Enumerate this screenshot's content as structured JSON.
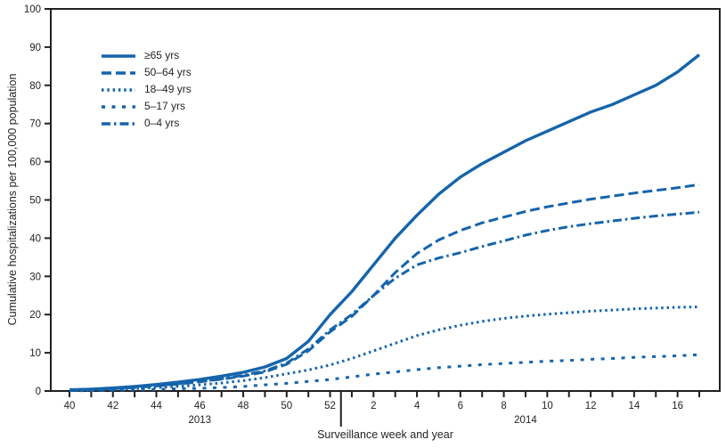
{
  "chart_data": {
    "type": "line",
    "title": "",
    "xlabel": "Surveillance week and year",
    "ylabel": "Cumulative hospitalizations per 100,000 population",
    "ylim": [
      0,
      100
    ],
    "y_ticks": [
      0,
      10,
      20,
      30,
      40,
      50,
      60,
      70,
      80,
      90,
      100
    ],
    "grid": "off",
    "legend_position": "upper-left-inside",
    "line_color": "#1564ab",
    "axis_color": "#231f20",
    "weeks": [
      40,
      41,
      42,
      43,
      44,
      45,
      46,
      47,
      48,
      49,
      50,
      51,
      52,
      1,
      2,
      3,
      4,
      5,
      6,
      7,
      8,
      9,
      10,
      11,
      12,
      13,
      14,
      15,
      16,
      17
    ],
    "x_tick_labels": [
      "40",
      "",
      "42",
      "",
      "44",
      "",
      "46",
      "",
      "48",
      "",
      "50",
      "",
      "52",
      "",
      "2",
      "",
      "4",
      "",
      "6",
      "",
      "8",
      "",
      "10",
      "",
      "12",
      "",
      "14",
      "",
      "16",
      ""
    ],
    "year_separator_after_index": 12,
    "year_labels": [
      {
        "text": "2013",
        "at_index": 6
      },
      {
        "text": "2014",
        "at_index": 21
      }
    ],
    "series": [
      {
        "name": "≥65 yrs",
        "style": "solid",
        "values": [
          0.3,
          0.5,
          0.8,
          1.2,
          1.7,
          2.3,
          3.0,
          3.9,
          4.9,
          6.3,
          8.5,
          13.0,
          20.0,
          26.0,
          33.0,
          40.0,
          46.0,
          51.5,
          56.0,
          59.5,
          62.5,
          65.5,
          68.0,
          70.5,
          73.0,
          75.0,
          77.5,
          80.0,
          83.5,
          88.0
        ]
      },
      {
        "name": "50–64 yrs",
        "style": "dashed",
        "values": [
          0.2,
          0.4,
          0.6,
          0.9,
          1.3,
          1.8,
          2.4,
          3.1,
          3.9,
          5.0,
          7.0,
          10.5,
          15.5,
          19.5,
          25.0,
          31.0,
          36.0,
          39.5,
          42.0,
          44.0,
          45.5,
          47.0,
          48.2,
          49.2,
          50.2,
          51.0,
          51.8,
          52.5,
          53.2,
          54.0
        ]
      },
      {
        "name": "18–49 yrs",
        "style": "dotted",
        "values": [
          0.1,
          0.2,
          0.4,
          0.6,
          0.9,
          1.2,
          1.6,
          2.1,
          2.7,
          3.5,
          4.5,
          5.5,
          6.8,
          8.5,
          10.5,
          12.5,
          14.5,
          16.0,
          17.2,
          18.2,
          19.0,
          19.6,
          20.1,
          20.5,
          20.9,
          21.2,
          21.5,
          21.7,
          21.9,
          22.0
        ]
      },
      {
        "name": "5–17 yrs",
        "style": "sparse-dash",
        "values": [
          0.1,
          0.1,
          0.2,
          0.3,
          0.4,
          0.6,
          0.7,
          0.9,
          1.2,
          1.6,
          2.0,
          2.5,
          3.0,
          3.7,
          4.4,
          5.0,
          5.6,
          6.1,
          6.5,
          6.9,
          7.2,
          7.5,
          7.8,
          8.0,
          8.3,
          8.5,
          8.8,
          9.0,
          9.2,
          9.5
        ]
      },
      {
        "name": "0–4 yrs",
        "style": "dash-dot",
        "values": [
          0.2,
          0.4,
          0.7,
          1.0,
          1.4,
          1.9,
          2.5,
          3.2,
          4.1,
          5.3,
          7.3,
          11.0,
          16.0,
          20.0,
          25.0,
          29.5,
          33.0,
          34.8,
          36.2,
          37.8,
          39.3,
          40.8,
          42.0,
          43.0,
          43.8,
          44.5,
          45.2,
          45.8,
          46.3,
          46.8
        ]
      }
    ]
  }
}
